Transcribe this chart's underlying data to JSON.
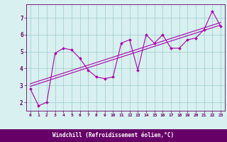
{
  "xlabel": "Windchill (Refroidissement éolien,°C)",
  "x_data": [
    0,
    1,
    2,
    3,
    4,
    5,
    6,
    7,
    8,
    9,
    10,
    11,
    12,
    13,
    14,
    15,
    16,
    17,
    18,
    19,
    20,
    21,
    22,
    23
  ],
  "y_data": [
    2.8,
    1.8,
    2.0,
    4.9,
    5.2,
    5.1,
    4.6,
    3.9,
    3.5,
    3.4,
    3.5,
    5.5,
    5.7,
    3.9,
    6.0,
    5.5,
    6.0,
    5.2,
    5.2,
    5.7,
    5.8,
    6.3,
    7.4,
    6.5
  ],
  "line_color": "#aa00aa",
  "background_color": "#d8f0f0",
  "grid_color": "#99cccc",
  "axis_color": "#660066",
  "bottom_bar_color": "#660066",
  "ylim": [
    1.5,
    7.8
  ],
  "xlim": [
    -0.5,
    23.5
  ],
  "yticks": [
    2,
    3,
    4,
    5,
    6,
    7
  ],
  "xticks": [
    0,
    1,
    2,
    3,
    4,
    5,
    6,
    7,
    8,
    9,
    10,
    11,
    12,
    13,
    14,
    15,
    16,
    17,
    18,
    19,
    20,
    21,
    22,
    23
  ]
}
